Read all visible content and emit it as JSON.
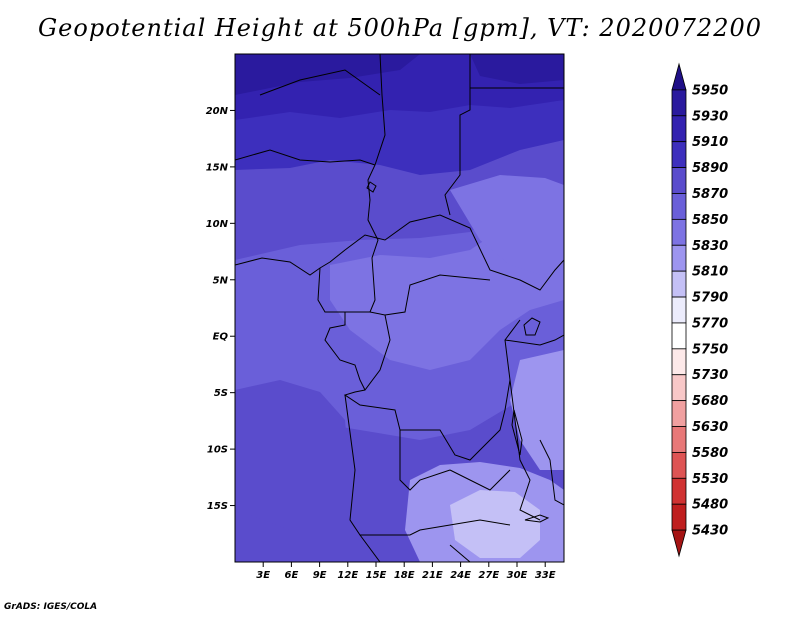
{
  "title": "Geopotential Height at 500hPa [gpm], VT: 2020072200",
  "footer": "GrADS: IGES/COLA",
  "map": {
    "lat_labels": [
      {
        "label": "20N",
        "lat": 20
      },
      {
        "label": "15N",
        "lat": 15
      },
      {
        "label": "10N",
        "lat": 10
      },
      {
        "label": "5N",
        "lat": 5
      },
      {
        "label": "EQ",
        "lat": 0
      },
      {
        "label": "5S",
        "lat": -5
      },
      {
        "label": "10S",
        "lat": -10
      },
      {
        "label": "15S",
        "lat": -15
      }
    ],
    "lon_labels": [
      {
        "label": "3E",
        "lon": 3
      },
      {
        "label": "6E",
        "lon": 6
      },
      {
        "label": "9E",
        "lon": 9
      },
      {
        "label": "12E",
        "lon": 12
      },
      {
        "label": "15E",
        "lon": 15
      },
      {
        "label": "18E",
        "lon": 18
      },
      {
        "label": "21E",
        "lon": 21
      },
      {
        "label": "24E",
        "lon": 24
      },
      {
        "label": "27E",
        "lon": 27
      },
      {
        "label": "30E",
        "lon": 30
      },
      {
        "label": "33E",
        "lon": 33
      }
    ],
    "lat_range": [
      -20,
      25
    ],
    "lon_range": [
      0,
      35
    ]
  },
  "colorbar": {
    "levels": [
      "5950",
      "5930",
      "5910",
      "5890",
      "5870",
      "5850",
      "5830",
      "5810",
      "5790",
      "5770",
      "5750",
      "5730",
      "5680",
      "5630",
      "5580",
      "5530",
      "5480",
      "5430"
    ],
    "colors": [
      "#1f0f87",
      "#2a1a9e",
      "#3322b0",
      "#3d2fbd",
      "#5a4ccc",
      "#6a5fd9",
      "#7d73e3",
      "#9d95ef",
      "#c4c0f6",
      "#ececfc",
      "#ffffff",
      "#fde9e9",
      "#f8c8c8",
      "#f0a0a0",
      "#e87878",
      "#de5454",
      "#d03232",
      "#bf1e1e",
      "#a51414"
    ]
  }
}
